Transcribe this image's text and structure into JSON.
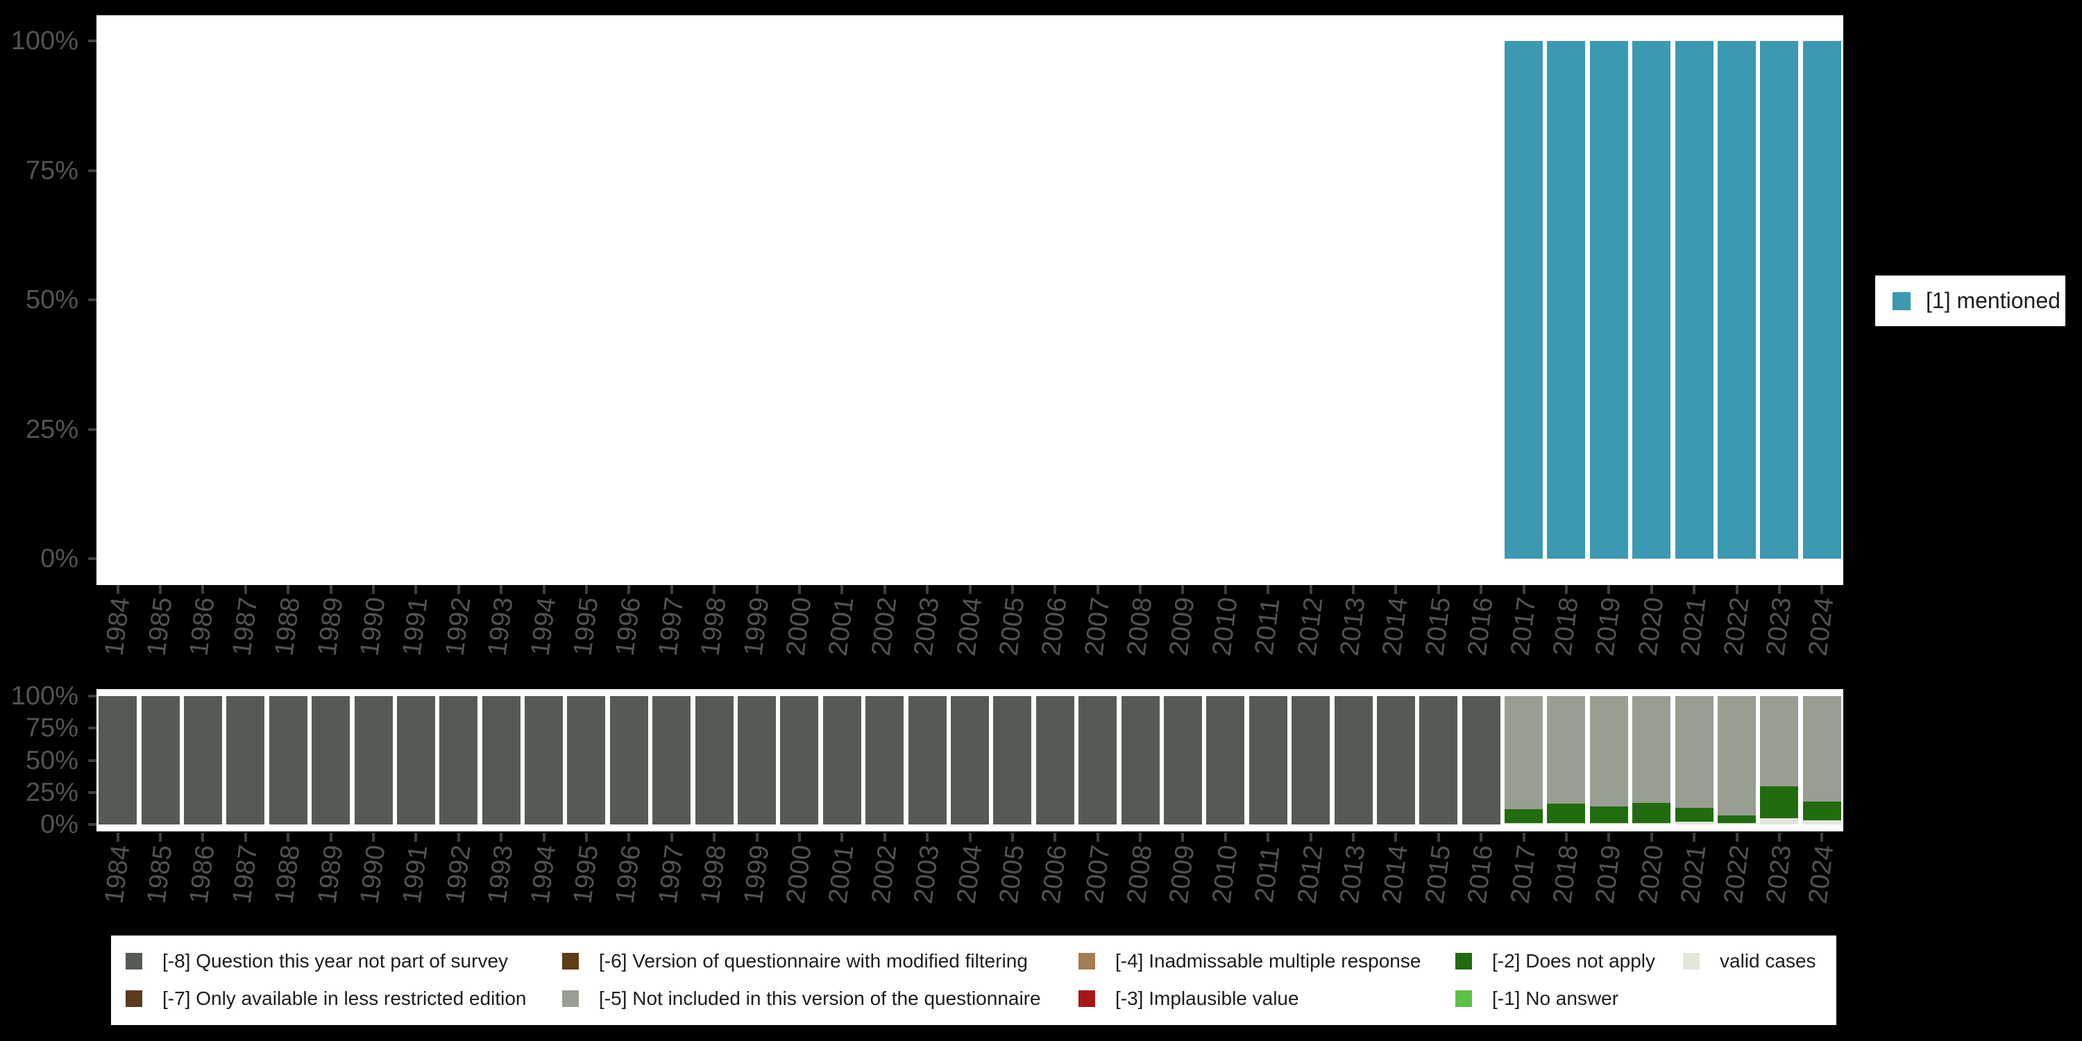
{
  "page": {
    "background": "#000000"
  },
  "style": {
    "plot_bg": "#ffffff",
    "axis_text_color": "#535353",
    "tick_color": "#3f3f3f",
    "legend_bg": "#ffffff",
    "legend_text_color": "#1d1d1d"
  },
  "top_legend": {
    "label": "[1] mentioned",
    "swatch_color": "#3b99b1"
  },
  "bottom_legend": {
    "items": [
      {
        "code": "[-8]",
        "label": "[-8] Question this year not part of survey",
        "color": "#555b53",
        "row": 1,
        "col": 1
      },
      {
        "code": "[-6]",
        "label": "[-6] Version of questionnaire with modified filtering",
        "color": "#5f3d15",
        "row": 1,
        "col": 2
      },
      {
        "code": "[-4]",
        "label": "[-4] Inadmissable multiple response",
        "color": "#a67c52",
        "row": 1,
        "col": 3
      },
      {
        "code": "[-2]",
        "label": "[-2] Does not apply",
        "color": "#216c0e",
        "row": 1,
        "col": 4
      },
      {
        "code": "valid",
        "label": "valid cases",
        "color": "#e1e6db",
        "row": 1,
        "col": 5
      },
      {
        "code": "[-7]",
        "label": "[-7] Only available in less restricted edition",
        "color": "#5b3a1d",
        "row": 2,
        "col": 1
      },
      {
        "code": "[-5]",
        "label": "[-5] Not included in this version of the questionnaire",
        "color": "#989e92",
        "row": 2,
        "col": 2
      },
      {
        "code": "[-3]",
        "label": "[-3] Implausible value",
        "color": "#a51717",
        "row": 2,
        "col": 3
      },
      {
        "code": "[-1]",
        "label": "[-1] No answer",
        "color": "#5cc247",
        "row": 2,
        "col": 4
      }
    ]
  },
  "chart_data": [
    {
      "id": "mentioned-by-year",
      "type": "bar",
      "stacked": true,
      "grid": false,
      "title": "",
      "xlabel": "",
      "ylabel": "",
      "ylim": [
        0,
        100
      ],
      "ytick_labels": [
        "0%",
        "25%",
        "50%",
        "75%",
        "100%"
      ],
      "legend_position": "right",
      "categories": [
        "1984",
        "1985",
        "1986",
        "1987",
        "1988",
        "1989",
        "1990",
        "1991",
        "1992",
        "1993",
        "1994",
        "1995",
        "1996",
        "1997",
        "1998",
        "1999",
        "2000",
        "2001",
        "2002",
        "2003",
        "2004",
        "2005",
        "2006",
        "2007",
        "2008",
        "2009",
        "2010",
        "2011",
        "2012",
        "2013",
        "2014",
        "2015",
        "2016",
        "2017",
        "2018",
        "2019",
        "2020",
        "2021",
        "2022",
        "2023",
        "2024"
      ],
      "series": [
        {
          "name": "[1] mentioned",
          "color": "#3b99b1",
          "values": [
            0,
            0,
            0,
            0,
            0,
            0,
            0,
            0,
            0,
            0,
            0,
            0,
            0,
            0,
            0,
            0,
            0,
            0,
            0,
            0,
            0,
            0,
            0,
            0,
            0,
            0,
            0,
            0,
            0,
            0,
            0,
            0,
            0,
            100,
            100,
            100,
            100,
            100,
            100,
            100,
            100
          ]
        }
      ]
    },
    {
      "id": "missing-values-by-year",
      "type": "bar",
      "stacked": true,
      "stack_order": "bottom-to-top",
      "grid": false,
      "title": "",
      "xlabel": "",
      "ylabel": "",
      "ylim": [
        0,
        100
      ],
      "ytick_labels": [
        "0%",
        "25%",
        "50%",
        "75%",
        "100%"
      ],
      "legend_position": "bottom",
      "categories": [
        "1984",
        "1985",
        "1986",
        "1987",
        "1988",
        "1989",
        "1990",
        "1991",
        "1992",
        "1993",
        "1994",
        "1995",
        "1996",
        "1997",
        "1998",
        "1999",
        "2000",
        "2001",
        "2002",
        "2003",
        "2004",
        "2005",
        "2006",
        "2007",
        "2008",
        "2009",
        "2010",
        "2011",
        "2012",
        "2013",
        "2014",
        "2015",
        "2016",
        "2017",
        "2018",
        "2019",
        "2020",
        "2021",
        "2022",
        "2023",
        "2024"
      ],
      "series": [
        {
          "name": "valid cases",
          "color": "#e1e6db",
          "values": [
            0,
            0,
            0,
            0,
            0,
            0,
            0,
            0,
            0,
            0,
            0,
            0,
            0,
            0,
            0,
            0,
            0,
            0,
            0,
            0,
            0,
            0,
            0,
            0,
            0,
            0,
            0,
            0,
            0,
            0,
            0,
            0,
            0,
            1,
            1,
            1,
            1,
            2,
            1,
            5,
            3
          ]
        },
        {
          "name": "[-2] Does not apply",
          "color": "#216c0e",
          "values": [
            0,
            0,
            0,
            0,
            0,
            0,
            0,
            0,
            0,
            0,
            0,
            0,
            0,
            0,
            0,
            0,
            0,
            0,
            0,
            0,
            0,
            0,
            0,
            0,
            0,
            0,
            0,
            0,
            0,
            0,
            0,
            0,
            0,
            11,
            15,
            13,
            16,
            11,
            6,
            25,
            15
          ]
        },
        {
          "name": "[-5] Not included in this version of the questionnaire",
          "color": "#989e92",
          "values": [
            0,
            0,
            0,
            0,
            0,
            0,
            0,
            0,
            0,
            0,
            0,
            0,
            0,
            0,
            0,
            0,
            0,
            0,
            0,
            0,
            0,
            0,
            0,
            0,
            0,
            0,
            0,
            0,
            0,
            0,
            0,
            0,
            0,
            88,
            84,
            86,
            83,
            87,
            93,
            70,
            82
          ]
        },
        {
          "name": "[-8] Question this year not part of survey",
          "color": "#555b53",
          "values": [
            100,
            100,
            100,
            100,
            100,
            100,
            100,
            100,
            100,
            100,
            100,
            100,
            100,
            100,
            100,
            100,
            100,
            100,
            100,
            100,
            100,
            100,
            100,
            100,
            100,
            100,
            100,
            100,
            100,
            100,
            100,
            100,
            100,
            0,
            0,
            0,
            0,
            0,
            0,
            0,
            0
          ]
        }
      ]
    }
  ]
}
